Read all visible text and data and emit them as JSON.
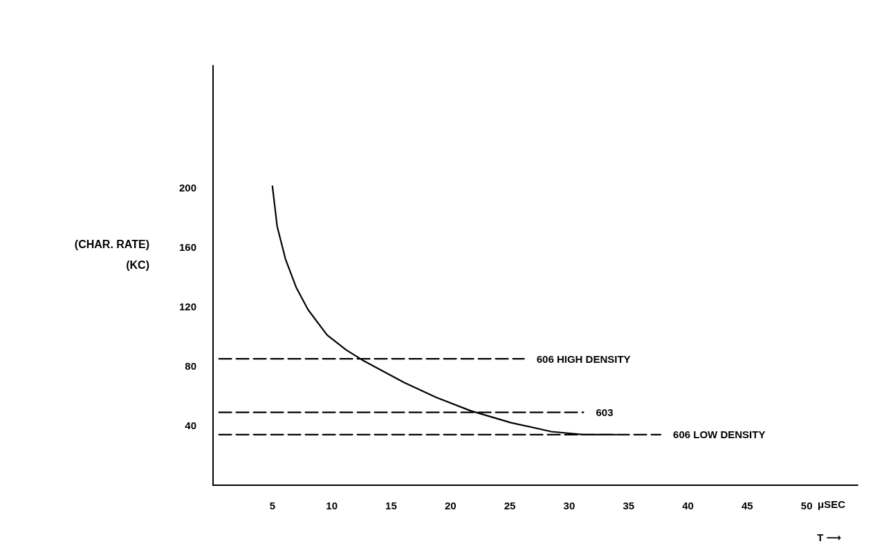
{
  "chart_data": {
    "type": "line",
    "xlabel": "μSEC",
    "ylabel": "(CHAR. RATE)\n(KC)",
    "annotations": [
      "T ⟶"
    ],
    "xlim": [
      0,
      54.3
    ],
    "xticks": [
      5,
      10,
      15,
      20,
      25,
      30,
      35,
      40,
      45,
      50
    ],
    "ylim": [
      0,
      282
    ],
    "yticks": [
      40,
      80,
      120,
      160,
      200
    ],
    "grid": false,
    "legend": false,
    "marker": "none",
    "series": [
      {
        "color": "#000000",
        "line_style": "solid",
        "x": [
          5,
          5.4,
          6.1,
          7,
          8,
          9.6,
          11.2,
          12.6,
          16.1,
          18.8,
          21.7,
          25.1,
          28.5,
          31.2,
          33.9
        ],
        "values": [
          201,
          174,
          152,
          133,
          118,
          101,
          91,
          84,
          69,
          59,
          50,
          42,
          36,
          34,
          34
        ]
      },
      {
        "name": "606 HIGH DENSITY",
        "color": "#000000",
        "line_style": "dashed",
        "x": [
          0.5,
          26.2
        ],
        "values": [
          85,
          85
        ]
      },
      {
        "name": "603",
        "color": "#000000",
        "line_style": "dashed",
        "x": [
          0.5,
          31.2
        ],
        "values": [
          49,
          49
        ]
      },
      {
        "name": "606 LOW DENSITY",
        "color": "#000000",
        "line_style": "dashed",
        "x": [
          0.5,
          37.7
        ],
        "values": [
          34,
          34
        ]
      }
    ]
  }
}
